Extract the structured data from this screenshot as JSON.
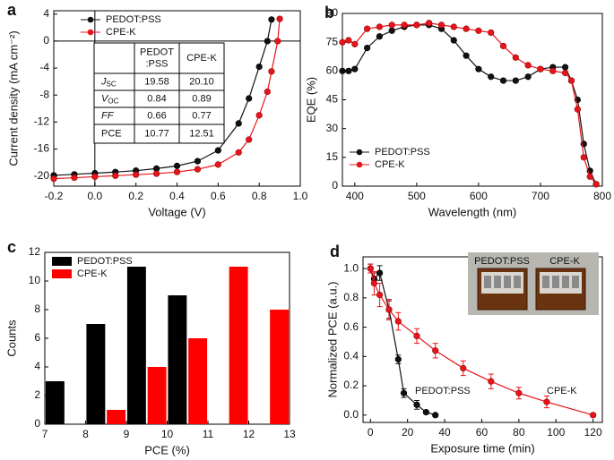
{
  "chart_data": [
    {
      "type": "line",
      "panel_label": "a",
      "x_label": "Voltage (V)",
      "y_label": "Current density (mA cm⁻²)",
      "x": [
        -0.2,
        -0.1,
        0,
        0.1,
        0.2,
        0.3,
        0.4,
        0.5,
        0.6,
        0.7,
        0.75,
        0.8,
        0.84,
        0.86,
        0.89,
        0.9
      ],
      "series": [
        {
          "name": "PEDOT:PSS",
          "color": "#111111",
          "values": [
            -19.9,
            -19.75,
            -19.58,
            -19.4,
            -19.2,
            -18.9,
            -18.5,
            -17.8,
            -16.2,
            -12.2,
            -8.5,
            -3.8,
            0,
            3.2,
            null,
            null
          ]
        },
        {
          "name": "CPE-K",
          "color": "#e8141b",
          "values": [
            -20.4,
            -20.25,
            -20.1,
            -19.95,
            -19.8,
            -19.65,
            -19.4,
            -19.0,
            -18.3,
            -16.5,
            -14.6,
            -11.0,
            -7.5,
            -4.5,
            0,
            3.3
          ]
        }
      ],
      "xlim": [
        -0.2,
        1.0
      ],
      "xticks": [
        -0.2,
        0,
        0.2,
        0.4,
        0.6,
        0.8,
        {
          "value": 1.0,
          "label": "1.0"
        },
        {
          "value": 0,
          "label": "0.0"
        }
      ],
      "ylim": [
        -21.5,
        4.5
      ],
      "yticks": [
        -20,
        -16,
        -12,
        -8,
        -4,
        0,
        4
      ],
      "legend": "upper left",
      "table": {
        "columns": [
          [
            "PEDOT",
            ":PSS"
          ],
          [
            "CPE-K"
          ]
        ],
        "rows": [
          {
            "label": "J",
            "sub": "SC",
            "values": [
              "19.58",
              "20.10"
            ]
          },
          {
            "label": "V",
            "sub": "OC",
            "values": [
              "0.84",
              "0.89"
            ]
          },
          {
            "label": "FF",
            "values": [
              "0.66",
              "0.77"
            ]
          },
          {
            "label": "PCE",
            "values": [
              "10.77",
              "12.51"
            ]
          }
        ]
      }
    },
    {
      "type": "line",
      "panel_label": "b",
      "x_label": "Wavelength (nm)",
      "y_label": "EQE (%)",
      "x": [
        380,
        390,
        400,
        420,
        440,
        460,
        480,
        500,
        520,
        540,
        560,
        580,
        600,
        620,
        640,
        660,
        680,
        700,
        720,
        740,
        750,
        760,
        770,
        780,
        790
      ],
      "series": [
        {
          "name": "PEDOT:PSS",
          "color": "#111111",
          "values": [
            60,
            60,
            61,
            72,
            78,
            81,
            83,
            84,
            84,
            82,
            76,
            68,
            61,
            57,
            55,
            55,
            57,
            61,
            62,
            62,
            55,
            45,
            22,
            8,
            1
          ]
        },
        {
          "name": "CPE-K",
          "color": "#e8141b",
          "values": [
            75,
            76,
            74,
            82,
            83,
            84,
            84,
            84,
            85,
            84,
            83,
            82,
            81,
            80,
            73,
            67,
            63,
            61,
            60,
            59,
            55,
            40,
            15,
            5,
            1
          ]
        }
      ],
      "xlim": [
        380,
        800
      ],
      "xticks": [
        400,
        500,
        600,
        700,
        800
      ],
      "ylim": [
        0,
        90
      ],
      "yticks": [
        0,
        15,
        30,
        45,
        60,
        75,
        90
      ],
      "legend": "lower left"
    },
    {
      "type": "bar",
      "panel_label": "c",
      "x_label": "PCE (%)",
      "y_label": "Counts",
      "x": [
        7.25,
        8.25,
        8.75,
        9.25,
        9.75,
        10.25,
        10.75,
        11.75,
        12.75
      ],
      "series": [
        {
          "name": "PEDOT:PSS",
          "color": "#000000",
          "values": [
            3,
            7,
            null,
            11,
            null,
            9,
            null,
            null,
            null
          ]
        },
        {
          "name": "CPE-K",
          "color": "#ff0000",
          "values": [
            null,
            null,
            1,
            null,
            4,
            null,
            6,
            11,
            8
          ]
        }
      ],
      "xlim": [
        7,
        13
      ],
      "xticks": [
        7,
        8,
        9,
        10,
        11,
        12,
        13
      ],
      "ylim": [
        0,
        12
      ],
      "yticks": [
        0,
        2,
        4,
        6,
        8,
        10,
        12
      ],
      "legend": "upper left"
    },
    {
      "type": "line",
      "panel_label": "d",
      "x_label": "Exposure time (min)",
      "y_label": "Normalized PCE (a.u.)",
      "series": [
        {
          "name": "PEDOT:PSS",
          "color": "#111111",
          "x": [
            0,
            2,
            5,
            10,
            15,
            18,
            25,
            30,
            35
          ],
          "values": [
            1.0,
            0.93,
            0.97,
            0.72,
            0.38,
            0.15,
            0.07,
            0.02,
            0.0
          ],
          "errors": [
            0.03,
            0.04,
            0.05,
            0.06,
            0.03,
            0.03,
            0.03,
            0.01,
            0.01
          ]
        },
        {
          "name": "CPE-K",
          "color": "#e8141b",
          "x": [
            0,
            2,
            5,
            10,
            15,
            25,
            35,
            50,
            65,
            80,
            95,
            120
          ],
          "values": [
            1.0,
            0.9,
            0.82,
            0.72,
            0.64,
            0.54,
            0.44,
            0.32,
            0.23,
            0.15,
            0.09,
            0.0
          ],
          "errors": [
            0.03,
            0.08,
            0.08,
            0.07,
            0.06,
            0.05,
            0.05,
            0.05,
            0.05,
            0.04,
            0.04,
            0.01
          ]
        }
      ],
      "xlim": [
        -4,
        125
      ],
      "xticks": [
        0,
        20,
        40,
        60,
        80,
        100,
        120
      ],
      "ylim": [
        -0.05,
        1.08
      ],
      "yticks": [
        {
          "value": 0,
          "label": "0.0"
        },
        0.2,
        0.4,
        0.6,
        0.8,
        {
          "value": 1,
          "label": "1.0"
        }
      ],
      "annotations": [
        "PEDOT:PSS",
        "CPE-K"
      ],
      "inset_labels": [
        "PEDOT:PSS",
        "CPE-K"
      ]
    }
  ]
}
